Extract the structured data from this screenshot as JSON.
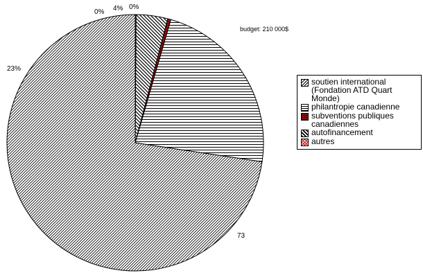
{
  "chart_data": {
    "type": "pie",
    "title": "",
    "budget_note": "budget: 210 000$",
    "slices": [
      {
        "name": "soutien international\n(Fondation ATD Quart\nMonde)",
        "value": 73,
        "label": "73",
        "pattern": "diag-fine"
      },
      {
        "name": "philantropie canadienne",
        "value": 23,
        "label": "23%",
        "pattern": "horizontal"
      },
      {
        "name": "subventions publiques\ncanadiennes",
        "value": 0.4,
        "label": "0%",
        "pattern": "grid-red"
      },
      {
        "name": "autofinancement",
        "value": 4,
        "label": "4%",
        "pattern": "diag-wide"
      },
      {
        "name": "autres",
        "value": 0.1,
        "label": "0%",
        "pattern": "cross-red"
      }
    ],
    "legend_position": "right",
    "start_angle_deg": 90,
    "direction": "counterclockwise"
  }
}
